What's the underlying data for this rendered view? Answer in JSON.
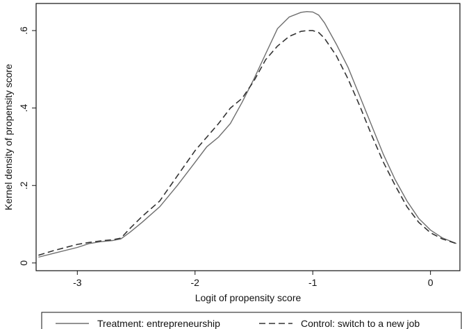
{
  "chart_data": {
    "type": "line",
    "title": "",
    "xlabel": "Logit of propensity score",
    "ylabel": "Kernel density of propensity score",
    "xlim": [
      -3.35,
      0.25
    ],
    "ylim": [
      -0.02,
      0.67
    ],
    "x_ticks": [
      -3,
      -2,
      -1,
      0
    ],
    "x_tick_labels": [
      "-3",
      "-2",
      "-1",
      "0"
    ],
    "y_ticks": [
      0,
      0.2,
      0.4,
      0.6
    ],
    "y_tick_labels": [
      "0",
      ".2",
      ".4",
      ".6"
    ],
    "y_tick_labels_rotated": true,
    "grid": false,
    "legend_position": "bottom",
    "series": [
      {
        "name": "Treatment: entrepreneurship",
        "style": "solid",
        "color": "#6e6e6e",
        "x": [
          -3.33,
          -3.2,
          -3.0,
          -2.9,
          -2.8,
          -2.7,
          -2.63,
          -2.55,
          -2.45,
          -2.3,
          -2.15,
          -2.0,
          -1.9,
          -1.8,
          -1.7,
          -1.6,
          -1.5,
          -1.4,
          -1.3,
          -1.2,
          -1.1,
          -1.05,
          -1.0,
          -0.95,
          -0.9,
          -0.8,
          -0.7,
          -0.6,
          -0.5,
          -0.4,
          -0.3,
          -0.2,
          -0.1,
          0.0,
          0.1,
          0.22
        ],
        "y": [
          0.015,
          0.025,
          0.04,
          0.05,
          0.055,
          0.058,
          0.062,
          0.08,
          0.105,
          0.145,
          0.2,
          0.26,
          0.3,
          0.325,
          0.36,
          0.415,
          0.475,
          0.54,
          0.605,
          0.635,
          0.647,
          0.649,
          0.648,
          0.64,
          0.62,
          0.565,
          0.505,
          0.43,
          0.355,
          0.28,
          0.215,
          0.16,
          0.115,
          0.085,
          0.065,
          0.05
        ]
      },
      {
        "name": "Control: switch to a new job",
        "style": "dashed",
        "color": "#333333",
        "x": [
          -3.33,
          -3.2,
          -3.0,
          -2.9,
          -2.8,
          -2.7,
          -2.63,
          -2.55,
          -2.45,
          -2.3,
          -2.15,
          -2.0,
          -1.9,
          -1.8,
          -1.7,
          -1.6,
          -1.5,
          -1.4,
          -1.3,
          -1.2,
          -1.1,
          -1.05,
          -1.0,
          -0.95,
          -0.9,
          -0.8,
          -0.7,
          -0.6,
          -0.5,
          -0.4,
          -0.3,
          -0.2,
          -0.1,
          0.0,
          0.1,
          0.22
        ],
        "y": [
          0.02,
          0.032,
          0.048,
          0.053,
          0.057,
          0.06,
          0.064,
          0.09,
          0.12,
          0.16,
          0.225,
          0.29,
          0.325,
          0.36,
          0.4,
          0.425,
          0.47,
          0.525,
          0.56,
          0.585,
          0.598,
          0.6,
          0.6,
          0.595,
          0.58,
          0.535,
          0.475,
          0.405,
          0.33,
          0.26,
          0.2,
          0.145,
          0.105,
          0.078,
          0.062,
          0.05
        ]
      }
    ]
  }
}
